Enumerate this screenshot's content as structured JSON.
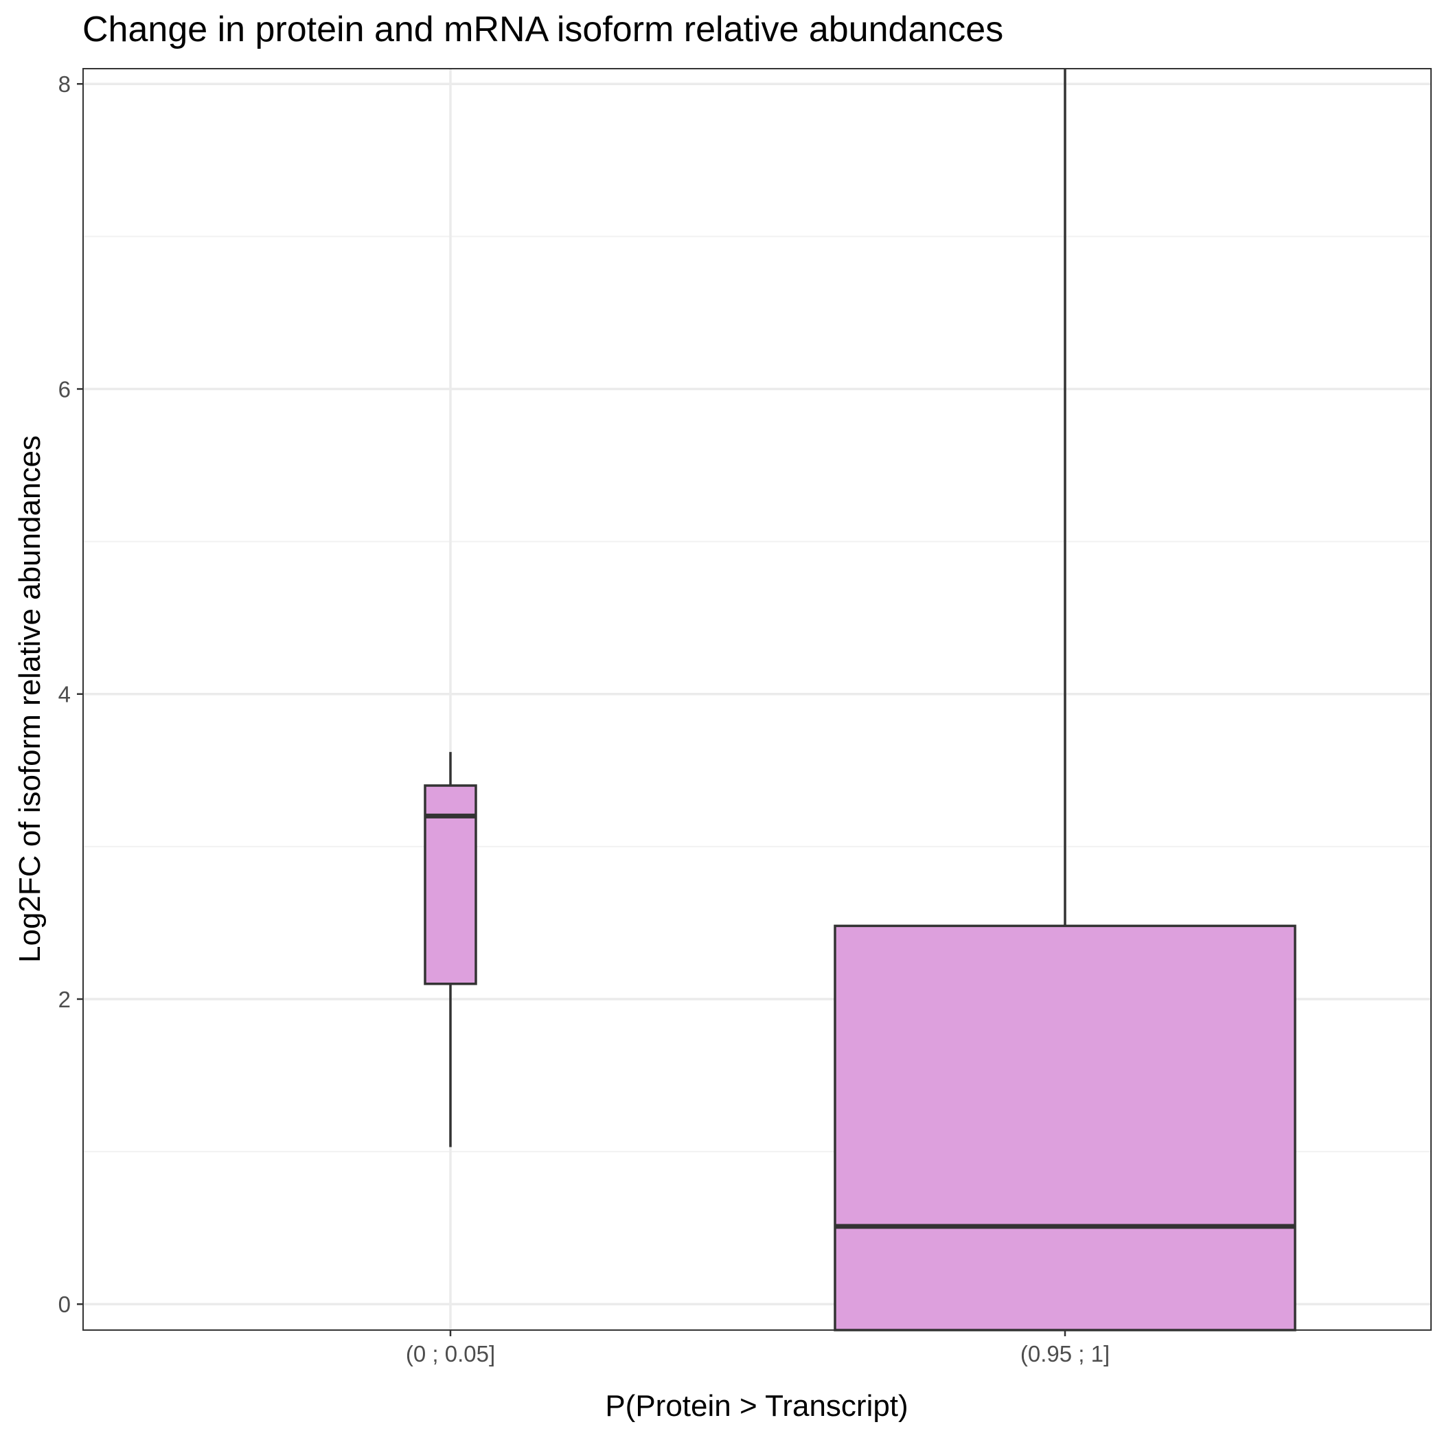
{
  "chart_data": {
    "type": "boxplot",
    "title": "Change in protein and mRNA isoform relative abundances",
    "xlabel": "P(Protein > Transcript)",
    "ylabel": "Log2FC of isoform relative abundances",
    "categories": [
      "(0 ; 0.05]",
      "(0.95 ; 1]"
    ],
    "boxes": [
      {
        "category": "(0 ; 0.05]",
        "whisker_low": 1.03,
        "q1": 2.1,
        "median": 3.2,
        "q3": 3.4,
        "whisker_high": 3.62
      },
      {
        "category": "(0.95 ; 1]",
        "whisker_low": -0.3,
        "q1": -0.3,
        "median": 0.51,
        "q3": 2.48,
        "whisker_high": 8.2
      }
    ],
    "ylim": [
      -0.17,
      8.1
    ],
    "y_ticks": [
      0,
      2,
      4,
      6,
      8
    ],
    "y_tick_labels": [
      "0",
      "2",
      "4",
      "6",
      "8"
    ],
    "grid": true,
    "legend": false,
    "colors": {
      "box_fill": "#dda0dd",
      "box_stroke": "#333333",
      "grid_major": "#ebebeb",
      "grid_minor": "#f2f2f2",
      "panel_border": "#333333"
    }
  }
}
